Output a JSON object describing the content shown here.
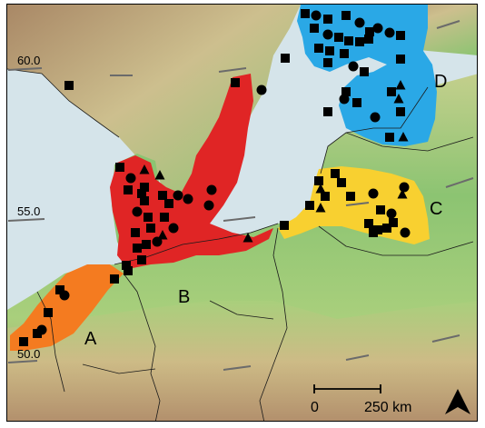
{
  "map": {
    "colors": {
      "sea": "#d5e4ea",
      "land_low": "#7fbf6a",
      "land_mid": "#c9d79a",
      "land_high": "#b08a6a",
      "region_A": "#f47b20",
      "region_B": "#7fbf6a",
      "region_C": "#f8d030",
      "region_D": "#2aa8e6",
      "region_red": "#e02525",
      "marker": "#000000"
    },
    "latitude_labels": [
      "60.0",
      "55.0",
      "50.0"
    ],
    "region_labels": {
      "A": "A",
      "B": "B",
      "C": "C",
      "D": "D"
    },
    "scale_bar": {
      "start_label": "0",
      "end_label": "250 km"
    },
    "north_arrow_icon": "north-arrow-icon"
  }
}
